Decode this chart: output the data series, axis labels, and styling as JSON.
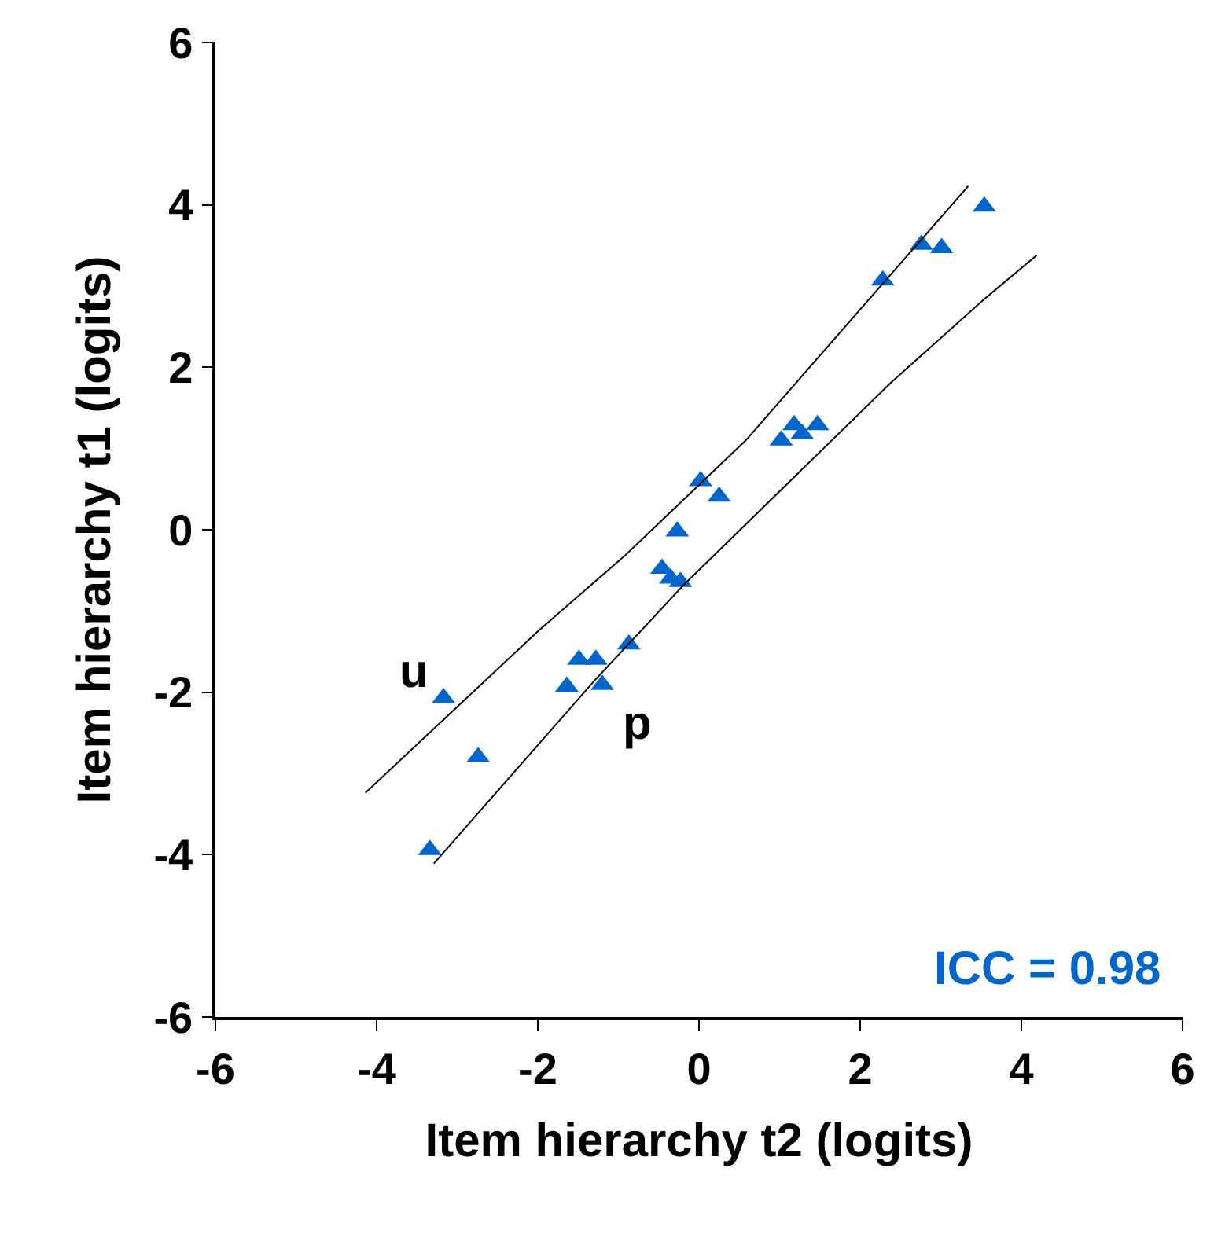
{
  "chart_data": {
    "type": "scatter",
    "xlabel": "Item hierarchy t2 (logits)",
    "ylabel": "Item hierarchy t1 (logits)",
    "marker": "triangle",
    "xlim": [
      -6,
      6
    ],
    "ylim": [
      -6,
      6
    ],
    "xticks": [
      -6,
      -4,
      -2,
      0,
      2,
      4,
      6
    ],
    "yticks": [
      -6,
      -4,
      -2,
      0,
      2,
      4,
      6
    ],
    "series": [
      {
        "color": "#0066cc",
        "x": [
          -3.17,
          -2.74,
          -3.34,
          -1.64,
          -1.49,
          -1.28,
          -1.2,
          -0.87,
          -0.46,
          -0.35,
          -0.23,
          -0.27,
          0.02,
          0.25,
          1.02,
          1.18,
          1.28,
          1.47,
          2.28,
          2.76,
          3.01,
          3.54
        ],
        "values": [
          -2.07,
          -2.8,
          -3.94,
          -1.93,
          -1.6,
          -1.6,
          -1.91,
          -1.41,
          -0.48,
          -0.6,
          -0.64,
          -0.02,
          0.6,
          0.41,
          1.1,
          1.29,
          1.18,
          1.29,
          3.07,
          3.51,
          3.47,
          3.98
        ]
      },
      {
        "type": "line",
        "color": "#000000",
        "marker": "none",
        "x": [
          -4.14,
          -2,
          -0.91,
          0.58,
          2.28,
          3.34
        ],
        "values": [
          -3.24,
          -1.25,
          -0.31,
          1.1,
          3.03,
          4.23
        ]
      },
      {
        "type": "line",
        "color": "#000000",
        "marker": "none",
        "x": [
          -3.29,
          -1.29,
          -0.19,
          2.38,
          3.54,
          4.19
        ],
        "values": [
          -4.11,
          -1.85,
          -0.68,
          1.81,
          2.84,
          3.38
        ]
      }
    ],
    "annotations": [
      "u",
      "p",
      "ICC = 0.98"
    ]
  }
}
